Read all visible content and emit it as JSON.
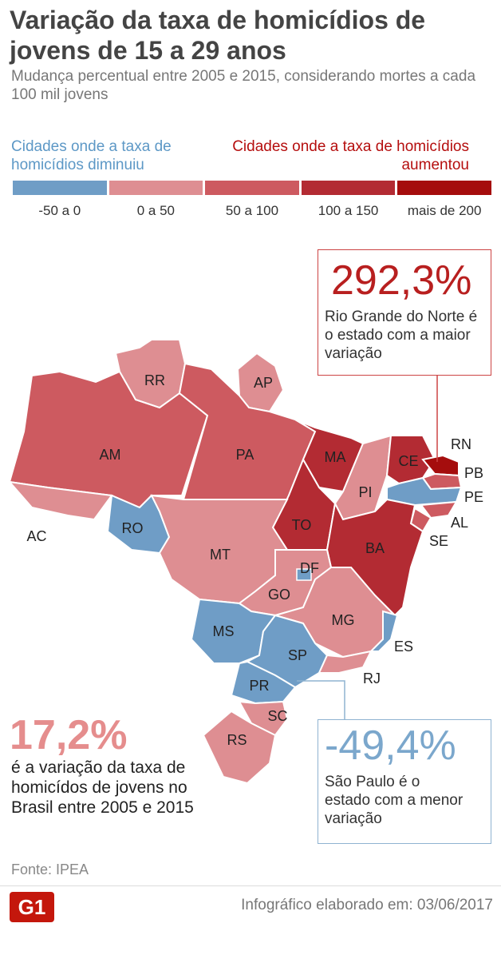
{
  "title": "Variação da taxa de homicídios de jovens de 15 a 29 anos",
  "subtitle": "Mudança percentual entre 2005 e 2015, considerando mortes a cada 100 mil jovens",
  "legend": {
    "left_label": "Cidades onde a taxa de homicídios diminuiu",
    "right_label": "Cidades onde a taxa de homicídios aumentou",
    "categories": [
      {
        "range": "-50 a 0",
        "color": "#6f9dc6"
      },
      {
        "range": "0 a 50",
        "color": "#de8e92"
      },
      {
        "range": "50 a 100",
        "color": "#cd5a60"
      },
      {
        "range": "100 a 150",
        "color": "#b32b33"
      },
      {
        "range": "mais de 200",
        "color": "#a50d0d"
      }
    ]
  },
  "states": {
    "RR": "RR",
    "AP": "AP",
    "AM": "AM",
    "PA": "PA",
    "MA": "MA",
    "CE": "CE",
    "RN": "RN",
    "PB": "PB",
    "PE": "PE",
    "AL": "AL",
    "SE": "SE",
    "PI": "PI",
    "TO": "TO",
    "BA": "BA",
    "AC": "AC",
    "RO": "RO",
    "MT": "MT",
    "DF": "DF",
    "GO": "GO",
    "MG": "MG",
    "ES": "ES",
    "MS": "MS",
    "SP": "SP",
    "RJ": "RJ",
    "PR": "PR",
    "SC": "SC",
    "RS": "RS"
  },
  "callout_max": {
    "value": "292,3%",
    "text": "Rio Grande do Norte é o estado com a maior variação"
  },
  "callout_min": {
    "value": "-49,4%",
    "text": "São Paulo é o estado com a menor variação"
  },
  "brazil": {
    "value": "17,2%",
    "text": "é a variação da taxa de homicídos de jovens no Brasil entre 2005 e 2015"
  },
  "source": "Fonte: IPEA",
  "footer": {
    "logo": "G1",
    "credit": "Infográfico elaborado em: 03/06/2017"
  }
}
